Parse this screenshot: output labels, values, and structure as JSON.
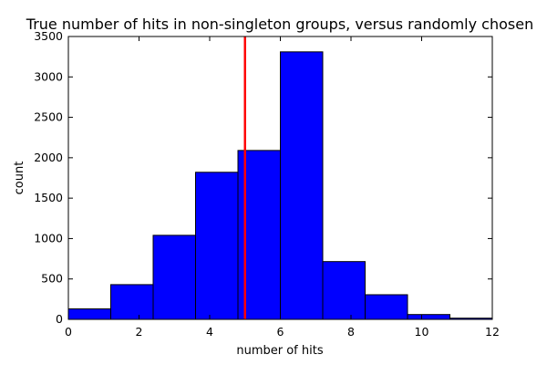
{
  "chart_data": {
    "type": "bar",
    "title": "True number of hits in non-singleton groups, versus randomly chosen",
    "xlabel": "number of hits",
    "ylabel": "count",
    "xlim": [
      0,
      12
    ],
    "ylim": [
      0,
      3500
    ],
    "xticks": [
      0,
      2,
      4,
      6,
      8,
      10,
      12
    ],
    "yticks": [
      0,
      500,
      1000,
      1500,
      2000,
      2500,
      3000,
      3500
    ],
    "bins": [
      {
        "x0": 0.0,
        "x1": 1.2,
        "value": 130
      },
      {
        "x0": 1.2,
        "x1": 2.4,
        "value": 430
      },
      {
        "x0": 2.4,
        "x1": 3.6,
        "value": 1040
      },
      {
        "x0": 3.6,
        "x1": 4.8,
        "value": 1820
      },
      {
        "x0": 4.8,
        "x1": 6.0,
        "value": 2090
      },
      {
        "x0": 6.0,
        "x1": 7.2,
        "value": 3310
      },
      {
        "x0": 7.2,
        "x1": 8.4,
        "value": 715
      },
      {
        "x0": 8.4,
        "x1": 9.6,
        "value": 305
      },
      {
        "x0": 9.6,
        "x1": 10.8,
        "value": 60
      },
      {
        "x0": 10.8,
        "x1": 12.0,
        "value": 15
      }
    ],
    "reference_line": {
      "x": 5.0,
      "color": "#ff0000"
    },
    "bar_color": "#0000ff",
    "grid": false,
    "legend": "none"
  }
}
